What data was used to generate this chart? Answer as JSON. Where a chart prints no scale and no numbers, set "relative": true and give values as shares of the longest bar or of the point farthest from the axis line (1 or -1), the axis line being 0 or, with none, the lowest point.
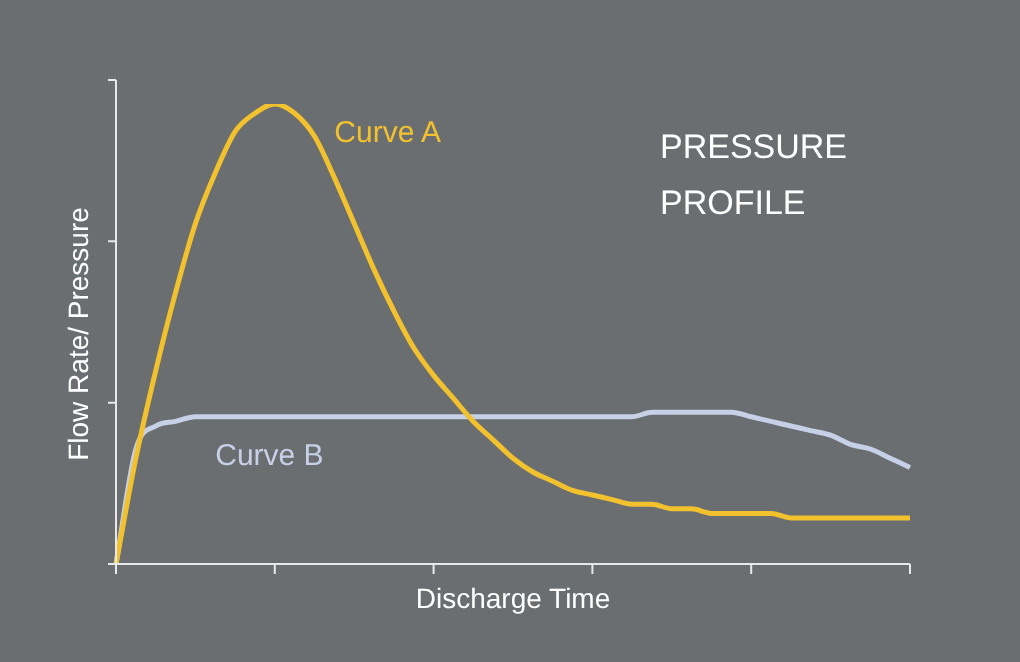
{
  "chart_data": {
    "type": "line",
    "title": "PRESSURE PROFILE",
    "xlabel": "Discharge Time",
    "ylabel": "Flow Rate/ Pressure",
    "relative": true,
    "legend": false,
    "marker": "none",
    "line_style": "solid",
    "categories": [
      null,
      null,
      null,
      null,
      null,
      null,
      null,
      null,
      null,
      null,
      null,
      null,
      null,
      null,
      null,
      null,
      null,
      null,
      null,
      null,
      null,
      null,
      null,
      null,
      null,
      null,
      null,
      null,
      null,
      null,
      null,
      null,
      null,
      null,
      null,
      null,
      null,
      null,
      null,
      null,
      null
    ],
    "series": [
      {
        "name": "Curve A",
        "color": "#f2c12e",
        "values": [
          0,
          0.23,
          0.42,
          0.59,
          0.74,
          0.85,
          0.94,
          0.98,
          1,
          0.98,
          0.93,
          0.84,
          0.74,
          0.64,
          0.55,
          0.47,
          0.41,
          0.36,
          0.31,
          0.27,
          0.23,
          0.2,
          0.18,
          0.16,
          0.15,
          0.14,
          0.13,
          0.13,
          0.12,
          0.12,
          0.11,
          0.11,
          0.11,
          0.11,
          0.1,
          0.1,
          0.1,
          0.1,
          0.1,
          0.1,
          0.1
        ]
      },
      {
        "name": "Curve B",
        "color": "#c6d0e6",
        "values": [
          0,
          0.25,
          0.3,
          0.31,
          0.32,
          0.32,
          0.32,
          0.32,
          0.32,
          0.32,
          0.32,
          0.32,
          0.32,
          0.32,
          0.32,
          0.32,
          0.32,
          0.32,
          0.32,
          0.32,
          0.32,
          0.32,
          0.32,
          0.32,
          0.32,
          0.32,
          0.32,
          0.33,
          0.33,
          0.33,
          0.33,
          0.33,
          0.32,
          0.31,
          0.3,
          0.29,
          0.28,
          0.26,
          0.25,
          0.23,
          0.21
        ]
      }
    ]
  }
}
